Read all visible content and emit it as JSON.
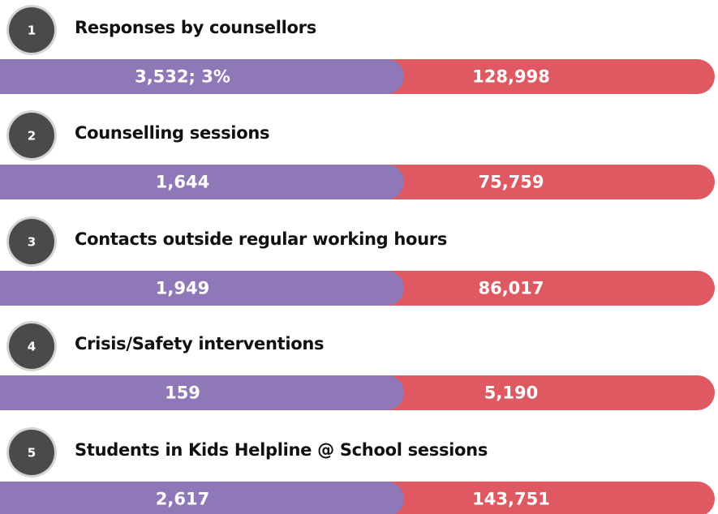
{
  "items": [
    {
      "number": "1",
      "title": "Responses by counsellors",
      "left": "3,532; 3%",
      "right": "128,998"
    },
    {
      "number": "2",
      "title": "Counselling sessions",
      "left": "1,644",
      "right": "75,759"
    },
    {
      "number": "3",
      "title": "Contacts outside regular working hours",
      "left": "1,949",
      "right": "86,017"
    },
    {
      "number": "4",
      "title": "Crisis/Safety interventions",
      "left": "159",
      "right": "5,190"
    },
    {
      "number": "5",
      "title": "Students in Kids Helpline @ School sessions",
      "left": "2,617",
      "right": "143,751"
    }
  ]
}
